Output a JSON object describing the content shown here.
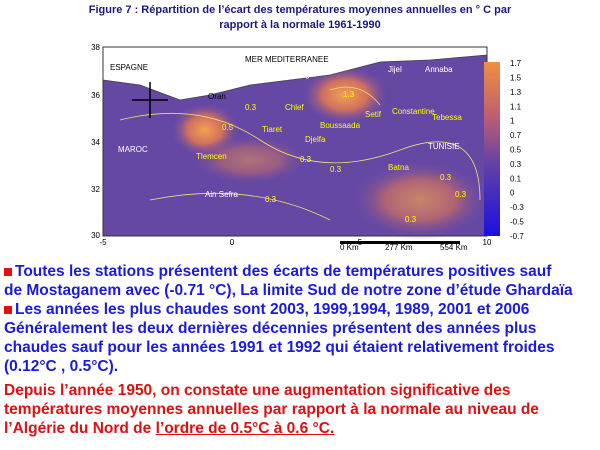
{
  "figure": {
    "title": [
      "Figure 7 : Répartition de l’écart des températures moyennes annuelles en ° C par",
      "rapport à la normale 1961-1990"
    ],
    "y_ticks": [
      "38",
      "36",
      "34",
      "32",
      "30"
    ],
    "x_ticks": [
      "-5",
      "0",
      "5",
      "10"
    ],
    "places": [
      "ESPAGNE",
      "MER MEDITERRANEE",
      "Alger",
      "Jijel",
      "Annaba",
      "Oran",
      "Chlef",
      "Tiaret",
      "Setif",
      "Constantine",
      "Tebessa",
      "Boussaada",
      "Djelfa",
      "TUNISIE",
      "MAROC",
      "Tlemcen",
      "Batna",
      "Ain Sefra"
    ],
    "contour_labels": [
      "0.3",
      "0.5",
      "0.3",
      "1.3",
      "0.3",
      "0.3",
      "0.3",
      "0.3",
      "0.3"
    ],
    "colorbar": [
      "1.7",
      "1.5",
      "1.3",
      "1.1",
      "1",
      "0.7",
      "0.5",
      "0.3",
      "0.1",
      "0",
      "-0.3",
      "-0.5",
      "-0.7"
    ],
    "scale": [
      "0 Km",
      "277 Km",
      "554 Km"
    ]
  },
  "paragraphs": [
    [
      "Toutes les stations présentent des écarts de températures positives sauf",
      "de Mostaganem avec (-0.71 °C), La limite Sud de notre zone d’étude Ghardaïa"
    ],
    [
      "Les années les plus chaudes sont 2003, 1999,1994, 1989, 2001 et 2006"
    ],
    [
      "Généralement  les deux dernières décennies présentent des années plus",
      "chaudes sauf pour les années 1991 et 1992 qui étaient relativement  froides",
      "(0.12°C , 0.5°C)."
    ],
    [
      "Depuis l’année 1950, on constate une augmentation significative des",
      "températures moyennes annuelles par rapport à la normale au niveau  de",
      "l’Algérie du Nord  de ",
      "l’ordre de 0.5°C  à 0.6 °C."
    ]
  ]
}
